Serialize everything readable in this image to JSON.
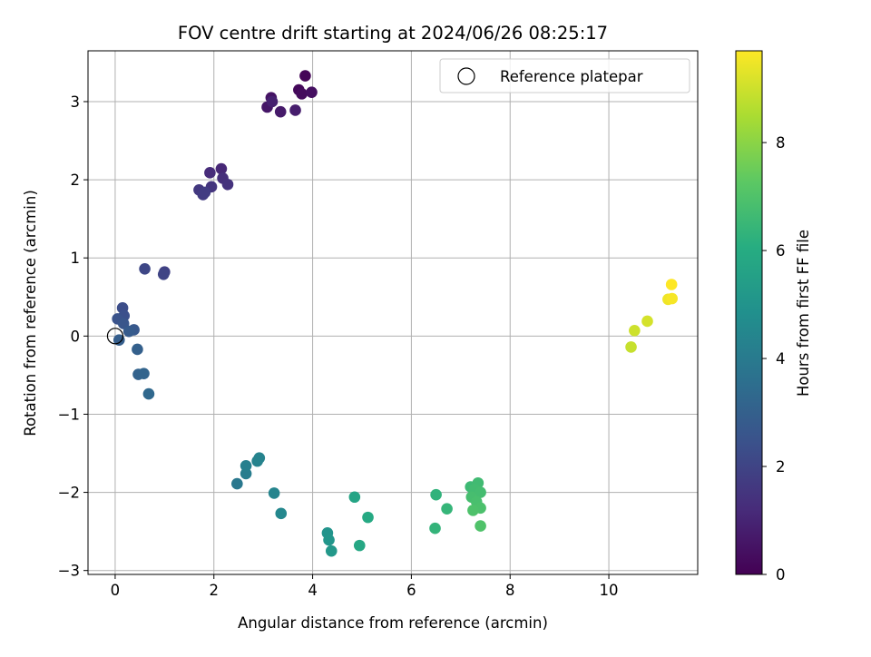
{
  "chart_data": {
    "type": "scatter",
    "title": "FOV centre drift starting at 2024/06/26 08:25:17",
    "xlabel": "Angular distance from reference (arcmin)",
    "ylabel": "Rotation from reference (arcmin)",
    "xlim": [
      -0.55,
      11.8
    ],
    "ylim": [
      -3.05,
      3.65
    ],
    "xticks": [
      0,
      2,
      4,
      6,
      8,
      10
    ],
    "yticks": [
      -3,
      -2,
      -1,
      0,
      1,
      2,
      3
    ],
    "xtick_labels": [
      "0",
      "2",
      "4",
      "6",
      "8",
      "10"
    ],
    "ytick_labels": [
      "−3",
      "−2",
      "−1",
      "0",
      "1",
      "2",
      "3"
    ],
    "grid": true,
    "legend": {
      "position": "top-right",
      "entries": [
        "Reference platepar"
      ]
    },
    "colorbar": {
      "label": "Hours from first FF file",
      "range": [
        0,
        9.7
      ],
      "ticks": [
        0,
        2,
        4,
        6,
        8
      ],
      "tick_labels": [
        "0",
        "2",
        "4",
        "6",
        "8"
      ],
      "colormap": "viridis"
    },
    "reference_point": {
      "x": 0,
      "y": 0
    },
    "points": [
      {
        "x": 3.85,
        "y": 3.33,
        "h": 0.1
      },
      {
        "x": 3.72,
        "y": 3.15,
        "h": 0.2
      },
      {
        "x": 3.78,
        "y": 3.1,
        "h": 0.3
      },
      {
        "x": 3.98,
        "y": 3.12,
        "h": 0.4
      },
      {
        "x": 3.16,
        "y": 3.05,
        "h": 0.5
      },
      {
        "x": 3.08,
        "y": 2.93,
        "h": 0.6
      },
      {
        "x": 3.35,
        "y": 2.87,
        "h": 0.7
      },
      {
        "x": 3.65,
        "y": 2.89,
        "h": 0.8
      },
      {
        "x": 3.18,
        "y": 3.0,
        "h": 0.9
      },
      {
        "x": 2.15,
        "y": 2.14,
        "h": 1.1
      },
      {
        "x": 1.92,
        "y": 2.09,
        "h": 1.2
      },
      {
        "x": 2.18,
        "y": 2.02,
        "h": 1.3
      },
      {
        "x": 2.28,
        "y": 1.94,
        "h": 1.4
      },
      {
        "x": 1.95,
        "y": 1.91,
        "h": 1.5
      },
      {
        "x": 1.7,
        "y": 1.87,
        "h": 1.6
      },
      {
        "x": 1.78,
        "y": 1.81,
        "h": 1.7
      },
      {
        "x": 1.82,
        "y": 1.84,
        "h": 1.75
      },
      {
        "x": 1.0,
        "y": 0.82,
        "h": 1.9
      },
      {
        "x": 0.98,
        "y": 0.79,
        "h": 2.0
      },
      {
        "x": 0.6,
        "y": 0.86,
        "h": 2.1
      },
      {
        "x": 0.15,
        "y": 0.36,
        "h": 2.3
      },
      {
        "x": 0.18,
        "y": 0.26,
        "h": 2.4
      },
      {
        "x": 0.05,
        "y": 0.22,
        "h": 2.5
      },
      {
        "x": 0.17,
        "y": 0.16,
        "h": 2.6
      },
      {
        "x": 0.38,
        "y": 0.08,
        "h": 2.7
      },
      {
        "x": 0.28,
        "y": 0.06,
        "h": 2.8
      },
      {
        "x": 0.08,
        "y": -0.05,
        "h": 2.9
      },
      {
        "x": 0.45,
        "y": -0.17,
        "h": 3.0
      },
      {
        "x": 0.47,
        "y": -0.49,
        "h": 3.1
      },
      {
        "x": 0.58,
        "y": -0.48,
        "h": 3.15
      },
      {
        "x": 0.68,
        "y": -0.74,
        "h": 3.3
      },
      {
        "x": 2.47,
        "y": -1.89,
        "h": 3.9
      },
      {
        "x": 2.65,
        "y": -1.76,
        "h": 4.1
      },
      {
        "x": 2.65,
        "y": -1.66,
        "h": 4.2
      },
      {
        "x": 2.88,
        "y": -1.6,
        "h": 4.3
      },
      {
        "x": 2.92,
        "y": -1.56,
        "h": 4.35
      },
      {
        "x": 3.22,
        "y": -2.01,
        "h": 4.4
      },
      {
        "x": 3.36,
        "y": -2.27,
        "h": 4.5
      },
      {
        "x": 4.3,
        "y": -2.52,
        "h": 5.0
      },
      {
        "x": 4.33,
        "y": -2.61,
        "h": 5.1
      },
      {
        "x": 4.38,
        "y": -2.75,
        "h": 5.2
      },
      {
        "x": 4.85,
        "y": -2.06,
        "h": 5.7
      },
      {
        "x": 4.95,
        "y": -2.68,
        "h": 5.8
      },
      {
        "x": 5.12,
        "y": -2.32,
        "h": 5.9
      },
      {
        "x": 6.5,
        "y": -2.03,
        "h": 6.3
      },
      {
        "x": 6.48,
        "y": -2.46,
        "h": 6.35
      },
      {
        "x": 6.72,
        "y": -2.21,
        "h": 6.4
      },
      {
        "x": 7.2,
        "y": -1.93,
        "h": 6.6
      },
      {
        "x": 7.35,
        "y": -1.88,
        "h": 6.65
      },
      {
        "x": 7.28,
        "y": -1.96,
        "h": 6.7
      },
      {
        "x": 7.4,
        "y": -2.0,
        "h": 6.75
      },
      {
        "x": 7.22,
        "y": -2.06,
        "h": 6.8
      },
      {
        "x": 7.32,
        "y": -2.12,
        "h": 6.85
      },
      {
        "x": 7.4,
        "y": -2.2,
        "h": 6.9
      },
      {
        "x": 7.25,
        "y": -2.23,
        "h": 6.95
      },
      {
        "x": 7.4,
        "y": -2.43,
        "h": 7.0
      },
      {
        "x": 10.45,
        "y": -0.14,
        "h": 8.9
      },
      {
        "x": 10.52,
        "y": 0.07,
        "h": 9.0
      },
      {
        "x": 10.78,
        "y": 0.19,
        "h": 9.1
      },
      {
        "x": 11.2,
        "y": 0.47,
        "h": 9.5
      },
      {
        "x": 11.28,
        "y": 0.48,
        "h": 9.6
      },
      {
        "x": 11.27,
        "y": 0.66,
        "h": 9.7
      }
    ]
  }
}
